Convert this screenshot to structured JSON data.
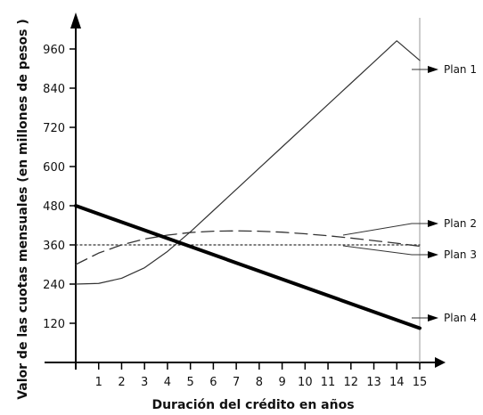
{
  "chart_data": {
    "type": "line",
    "xlabel": "Duración del crédito en años",
    "ylabel": "Valor de las cuotas mensuales (en millones de pesos )",
    "xlim": [
      0,
      15
    ],
    "ylim": [
      0,
      1000
    ],
    "x_ticks": [
      1,
      2,
      3,
      4,
      5,
      6,
      7,
      8,
      9,
      10,
      11,
      12,
      13,
      14,
      15
    ],
    "y_ticks": [
      120,
      240,
      360,
      480,
      600,
      720,
      840,
      960
    ],
    "grid": false,
    "legend_placement": "right",
    "reference_line_x": 15,
    "series": [
      {
        "name": "Plan 1",
        "style": "thin-solid",
        "color": "#333333",
        "x": [
          0,
          1,
          2,
          3,
          4,
          5,
          6,
          7,
          8,
          9,
          10,
          11,
          12,
          13,
          14,
          15
        ],
        "y": [
          240,
          242,
          258,
          290,
          340,
          400,
          465,
          530,
          595,
          660,
          725,
          790,
          855,
          920,
          985,
          925
        ]
      },
      {
        "name": "Plan 2",
        "style": "dashed",
        "color": "#333333",
        "x": [
          0,
          1,
          2,
          3,
          4,
          5,
          6,
          7,
          8,
          9,
          10,
          11,
          12,
          13,
          14,
          15
        ],
        "y": [
          300,
          335,
          360,
          378,
          390,
          398,
          402,
          403,
          402,
          399,
          394,
          388,
          381,
          373,
          365,
          356
        ]
      },
      {
        "name": "Plan 3",
        "style": "dotted",
        "color": "#333333",
        "x": [
          0,
          15
        ],
        "y": [
          360,
          360
        ]
      },
      {
        "name": "Plan 4",
        "style": "thick-solid",
        "color": "#000000",
        "x": [
          0,
          15
        ],
        "y": [
          480,
          105
        ]
      }
    ]
  }
}
